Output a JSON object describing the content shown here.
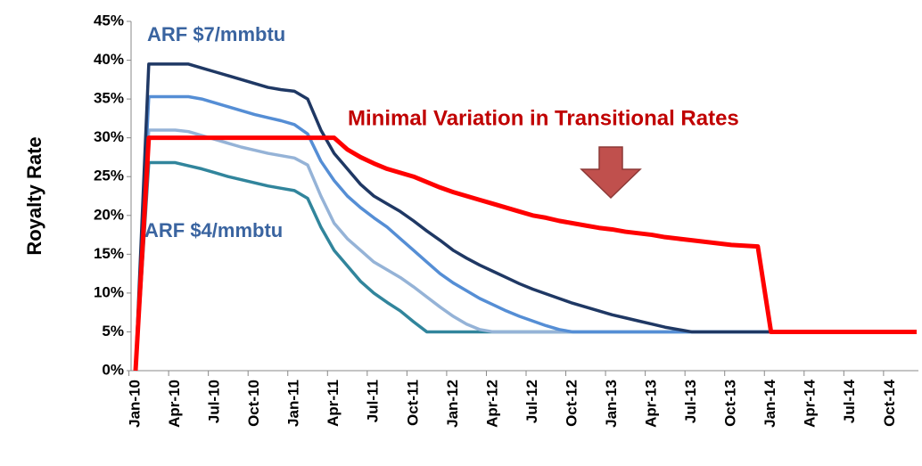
{
  "chart_data": {
    "type": "line",
    "y_label": "Royalty Rate",
    "annotations": [
      "ARF $7/mmbtu",
      "ARF $4/mmbtu",
      "Minimal Variation in Transitional Rates"
    ],
    "categories": [
      "Jan-10",
      null,
      null,
      "Apr-10",
      null,
      null,
      "Jul-10",
      null,
      null,
      "Oct-10",
      null,
      null,
      "Jan-11",
      null,
      null,
      "Apr-11",
      null,
      null,
      "Jul-11",
      null,
      null,
      "Oct-11",
      null,
      null,
      "Jan-12",
      null,
      null,
      "Apr-12",
      null,
      null,
      "Jul-12",
      null,
      null,
      "Oct-12",
      null,
      null,
      "Jan-13",
      null,
      null,
      "Apr-13",
      null,
      null,
      "Jul-13",
      null,
      null,
      "Oct-13",
      null,
      null,
      "Jan-14",
      null,
      null,
      "Apr-14",
      null,
      null,
      "Jul-14",
      null,
      null,
      "Oct-14",
      null,
      null
    ],
    "series": [
      {
        "color": "#31859c",
        "values": [
          0,
          26.8,
          26.8,
          26.8,
          26.4,
          26,
          25.5,
          25,
          24.6,
          24.2,
          23.8,
          23.5,
          23.2,
          22.2,
          18.5,
          15.5,
          13.5,
          11.5,
          10,
          8.8,
          7.7,
          6.3,
          5,
          5,
          5,
          5,
          5,
          5,
          5,
          5,
          5,
          5,
          5,
          5,
          5,
          5,
          5,
          5,
          5,
          5,
          5,
          5,
          5,
          5,
          5,
          5,
          5,
          5,
          5,
          5,
          5,
          5,
          5,
          5,
          5,
          5,
          5,
          5,
          5,
          5
        ]
      },
      {
        "color": "#95b3d7",
        "values": [
          0,
          31,
          31,
          31,
          30.8,
          30.3,
          29.8,
          29.3,
          28.8,
          28.4,
          28,
          27.7,
          27.4,
          26.5,
          22.5,
          19,
          17,
          15.5,
          14,
          13,
          12,
          10.8,
          9.5,
          8.2,
          7,
          6,
          5.3,
          5,
          5,
          5,
          5,
          5,
          5,
          5,
          5,
          5,
          5,
          5,
          5,
          5,
          5,
          5,
          5,
          5,
          5,
          5,
          5,
          5,
          5,
          5,
          5,
          5,
          5,
          5,
          5,
          5,
          5,
          5,
          5,
          5
        ]
      },
      {
        "color": "#558ed5",
        "values": [
          0,
          35.3,
          35.3,
          35.3,
          35.3,
          35,
          34.5,
          34,
          33.5,
          33,
          32.6,
          32.2,
          31.7,
          30.5,
          27,
          24.5,
          22.5,
          21,
          19.7,
          18.5,
          17,
          15.5,
          14,
          12.5,
          11.3,
          10.3,
          9.3,
          8.5,
          7.7,
          7,
          6.4,
          5.8,
          5.3,
          5,
          5,
          5,
          5,
          5,
          5,
          5,
          5,
          5,
          5,
          5,
          5,
          5,
          5,
          5,
          5,
          5,
          5,
          5,
          5,
          5,
          5,
          5,
          5,
          5,
          5,
          5
        ]
      },
      {
        "color": "#1f3864",
        "values": [
          0,
          39.5,
          39.5,
          39.5,
          39.5,
          39,
          38.5,
          38,
          37.5,
          37,
          36.5,
          36.2,
          36,
          35,
          31,
          28,
          26,
          24,
          22.5,
          21.5,
          20.5,
          19.3,
          18,
          16.8,
          15.5,
          14.5,
          13.6,
          12.8,
          12,
          11.2,
          10.5,
          9.9,
          9.3,
          8.7,
          8.2,
          7.7,
          7.2,
          6.8,
          6.4,
          6,
          5.6,
          5.3,
          5,
          5,
          5,
          5,
          5,
          5,
          5,
          5,
          5,
          5,
          5,
          5,
          5,
          5,
          5,
          5,
          5,
          5
        ]
      },
      {
        "color": "#ff0000",
        "values": [
          0,
          30,
          30,
          30,
          30,
          30,
          30,
          30,
          30,
          30,
          30,
          30,
          30,
          30,
          30,
          30,
          28.5,
          27.5,
          26.7,
          26,
          25.5,
          25,
          24.3,
          23.6,
          23,
          22.5,
          22,
          21.5,
          21,
          20.5,
          20,
          19.7,
          19.3,
          19,
          18.7,
          18.4,
          18.2,
          17.9,
          17.7,
          17.5,
          17.2,
          17,
          16.8,
          16.6,
          16.4,
          16.2,
          16.1,
          16,
          5,
          5,
          5,
          5,
          5,
          5,
          5,
          5,
          5,
          5,
          5,
          5
        ]
      }
    ],
    "ylim": [
      0,
      45
    ],
    "yticks": [
      {
        "value": 0,
        "label": "0%"
      },
      {
        "value": 5,
        "label": "5%"
      },
      {
        "value": 10,
        "label": "10%"
      },
      {
        "value": 15,
        "label": "15%"
      },
      {
        "value": 20,
        "label": "20%"
      },
      {
        "value": 25,
        "label": "25%"
      },
      {
        "value": 30,
        "label": "30%"
      },
      {
        "value": 35,
        "label": "35%"
      },
      {
        "value": 40,
        "label": "40%"
      },
      {
        "value": 45,
        "label": "45%"
      }
    ],
    "grid": false
  }
}
